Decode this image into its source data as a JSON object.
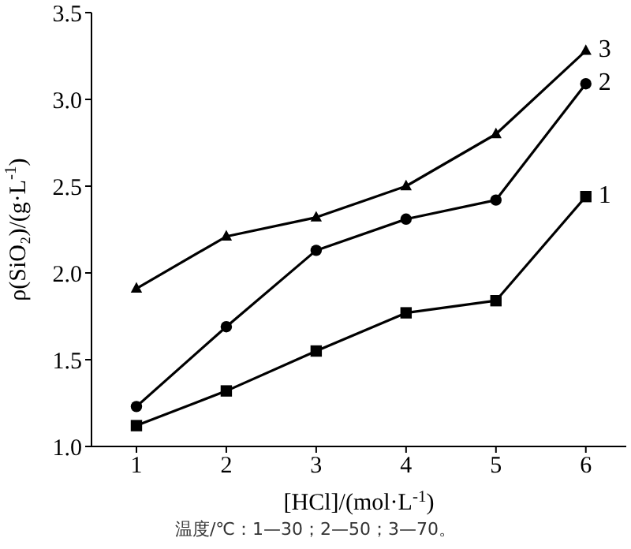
{
  "chart_data": {
    "type": "line",
    "xlabel": "[HCl]/(mol·L$^{-1}$)",
    "ylabel": "ρ(SiO₂)/(g·L$^{-1}$)",
    "x": [
      1,
      2,
      3,
      4,
      5,
      6
    ],
    "xlim": [
      0.5,
      6.45
    ],
    "xticks": [
      1,
      2,
      3,
      4,
      5,
      6
    ],
    "ylim": [
      1.0,
      3.5
    ],
    "yticks": [
      {
        "value": 1.0,
        "label": "1.0"
      },
      {
        "value": 1.5,
        "label": "1.5"
      },
      {
        "value": 2.0,
        "label": "2.0"
      },
      {
        "value": 2.5,
        "label": "2.5"
      },
      {
        "value": 3.0,
        "label": "3.0"
      },
      {
        "value": 3.5,
        "label": "3.5"
      }
    ],
    "grid": false,
    "legend": false,
    "line_style": "solid",
    "series": [
      {
        "name": "1",
        "color": "#000000",
        "marker": "square",
        "values": [
          1.12,
          1.32,
          1.55,
          1.77,
          1.84,
          2.44
        ]
      },
      {
        "name": "2",
        "color": "#000000",
        "marker": "circle",
        "values": [
          1.23,
          1.69,
          2.13,
          2.31,
          2.42,
          3.09
        ]
      },
      {
        "name": "3",
        "color": "#000000",
        "marker": "triangle",
        "values": [
          1.91,
          2.21,
          2.32,
          2.5,
          2.8,
          3.28
        ]
      }
    ],
    "annotations": [
      "温度/℃：1—30；2—50；3—70。"
    ]
  }
}
